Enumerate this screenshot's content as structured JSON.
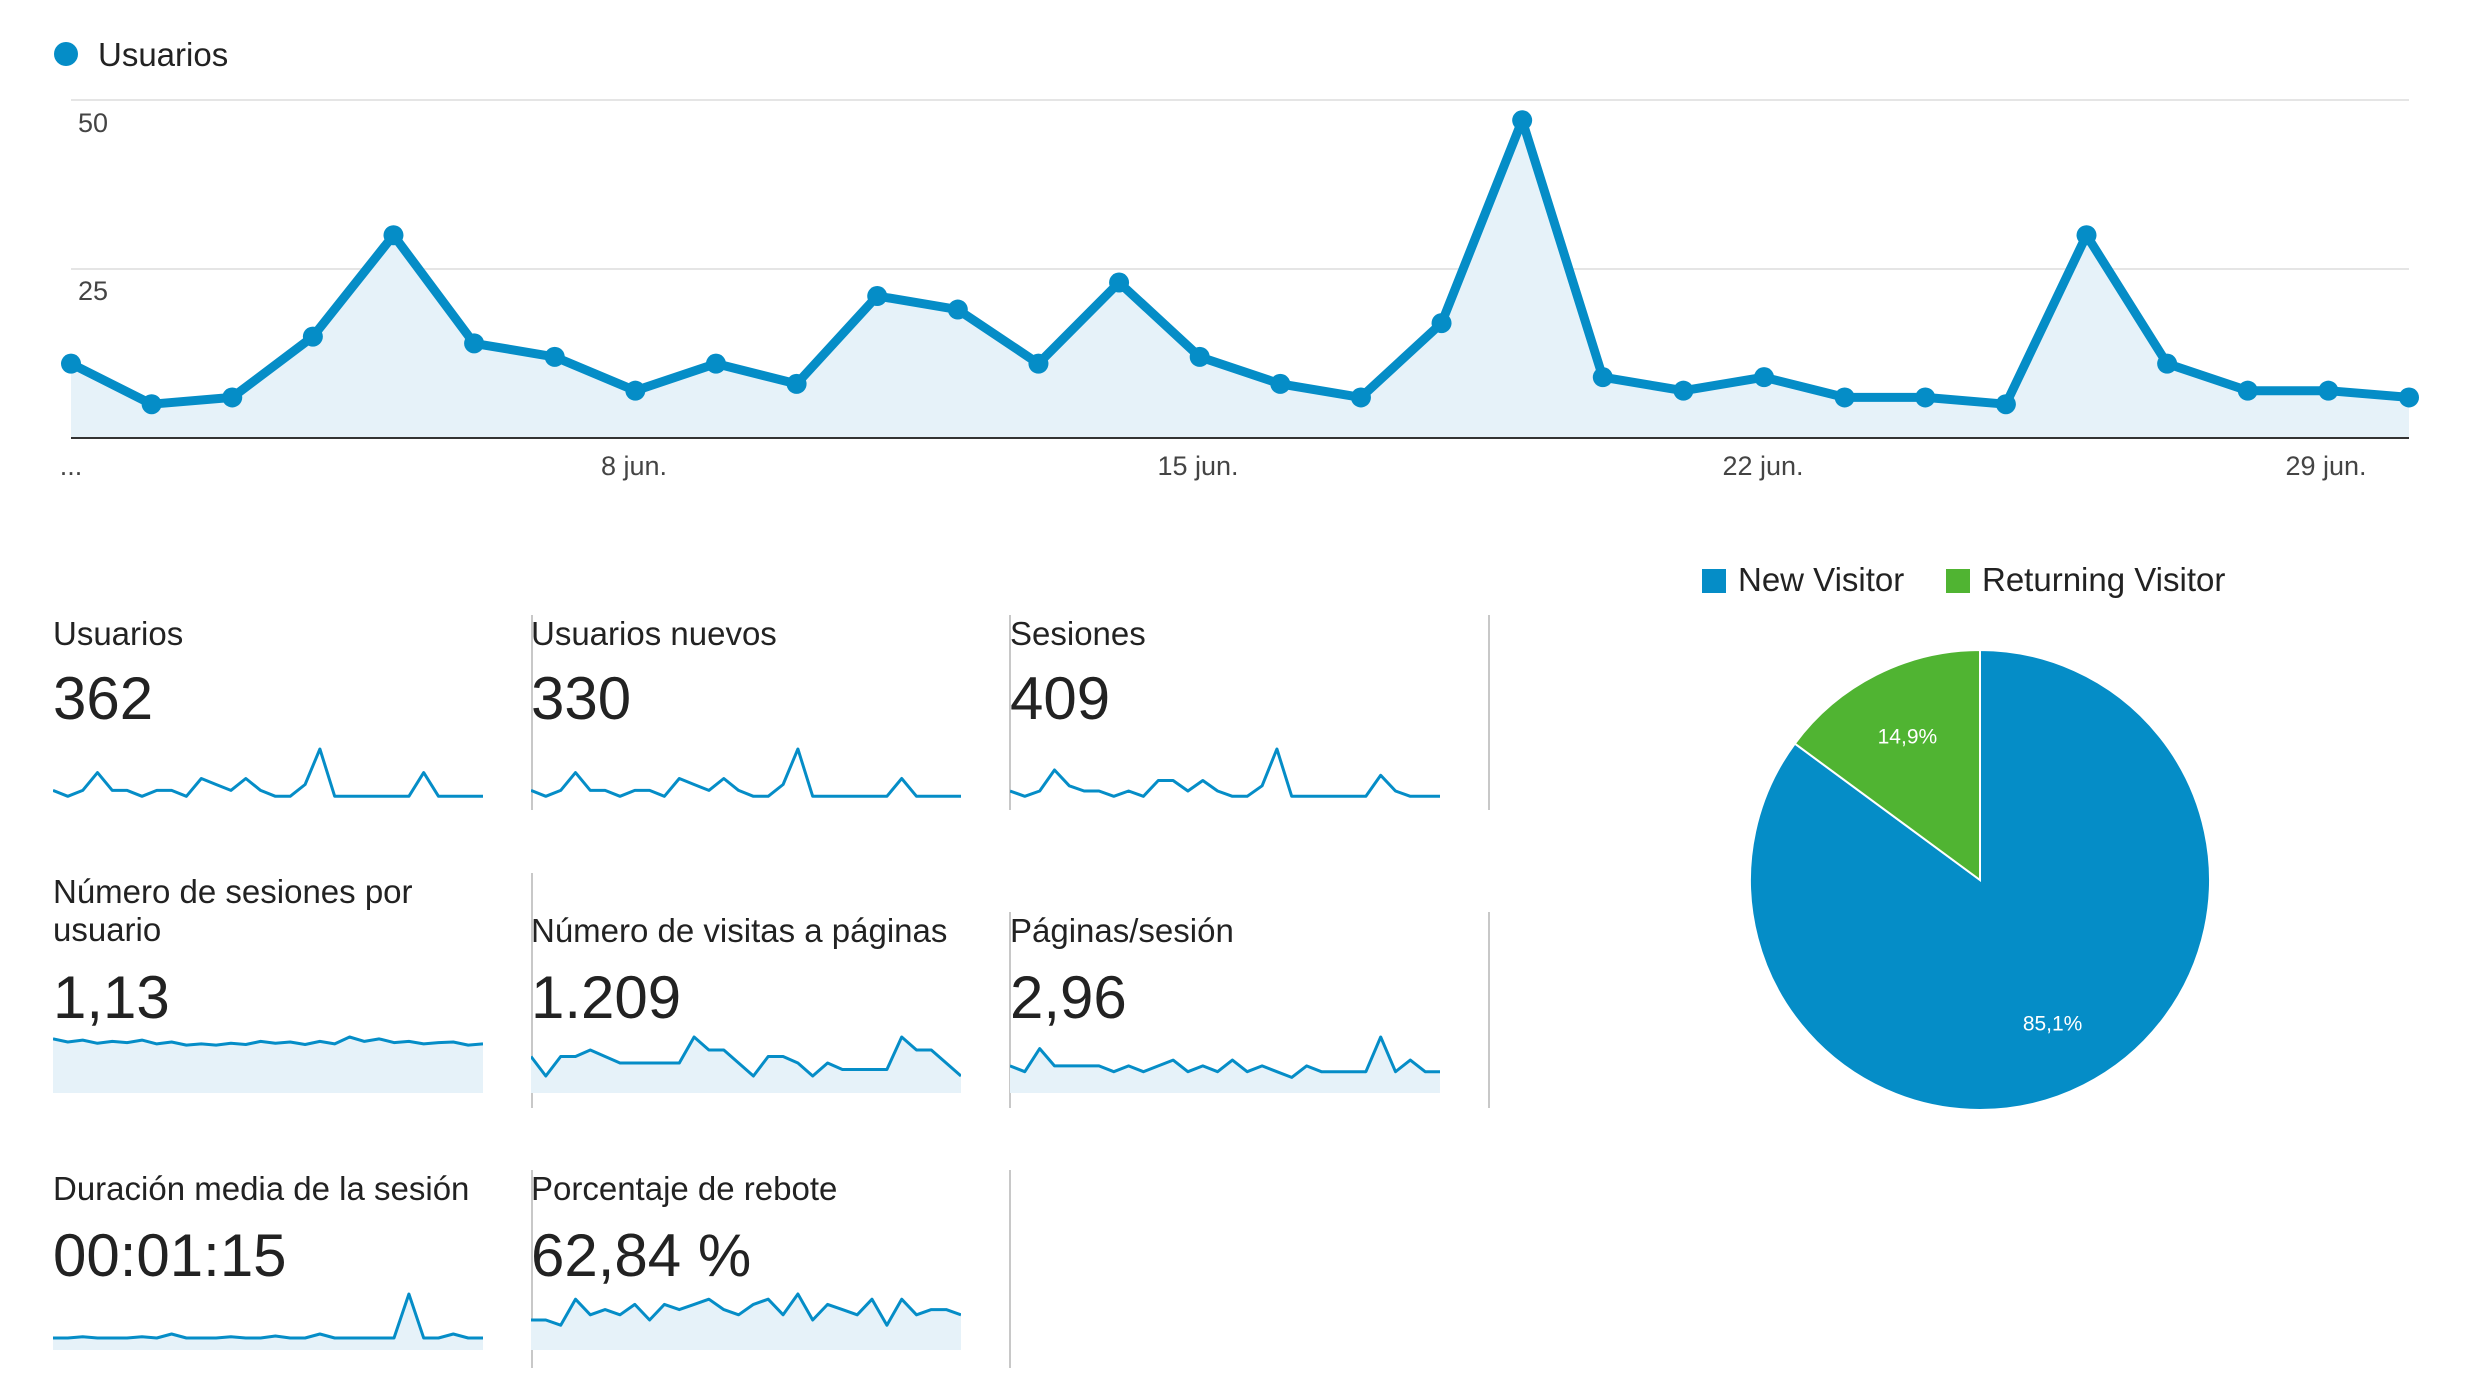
{
  "colors": {
    "series": "#058dc7",
    "series_fill": "#e6f2f9",
    "new_visitor": "#058dc7",
    "returning_visitor": "#50b432",
    "grid": "#e5e5e5",
    "axis": "#333333",
    "tile_divider": "#c8c8c8"
  },
  "chart_data": [
    {
      "type": "line",
      "legend": "Usuarios",
      "legend_placement": "top-left",
      "y_ticks": [
        "50",
        "25"
      ],
      "ylim": [
        0,
        50
      ],
      "x_tick_labels": [
        "...",
        "8 jun.",
        "15 jun.",
        "22 jun.",
        "29 jun."
      ],
      "grid": true,
      "series": [
        {
          "name": "Usuarios",
          "values": [
            11,
            5,
            6,
            15,
            30,
            14,
            12,
            7,
            11,
            8,
            21,
            19,
            11,
            23,
            12,
            8,
            6,
            17,
            47,
            9,
            7,
            9,
            6,
            6,
            5,
            30,
            11,
            7,
            7,
            6
          ]
        }
      ]
    },
    {
      "type": "pie",
      "legend": [
        "New Visitor",
        "Returning Visitor"
      ],
      "legend_placement": "top",
      "slices": [
        {
          "name": "New Visitor",
          "value": 85.1,
          "label": "85,1%"
        },
        {
          "name": "Returning Visitor",
          "value": 14.9,
          "label": "14,9%"
        }
      ]
    }
  ],
  "metrics": [
    {
      "label": "Usuarios",
      "value": "362",
      "spark": [
        5,
        4,
        5,
        8,
        5,
        5,
        4,
        5,
        5,
        4,
        7,
        6,
        5,
        7,
        5,
        4,
        4,
        6,
        12,
        4,
        4,
        4,
        4,
        4,
        4,
        8,
        4,
        4,
        4,
        4
      ],
      "area": false
    },
    {
      "label": "Usuarios nuevos",
      "value": "330",
      "spark": [
        5,
        4,
        5,
        8,
        5,
        5,
        4,
        5,
        5,
        4,
        7,
        6,
        5,
        7,
        5,
        4,
        4,
        6,
        12,
        4,
        4,
        4,
        4,
        4,
        4,
        7,
        4,
        4,
        4,
        4
      ],
      "area": false
    },
    {
      "label": "Sesiones",
      "value": "409",
      "spark": [
        5,
        4,
        5,
        9,
        6,
        5,
        5,
        4,
        5,
        4,
        7,
        7,
        5,
        7,
        5,
        4,
        4,
        6,
        13,
        4,
        4,
        4,
        4,
        4,
        4,
        8,
        5,
        4,
        4,
        4
      ],
      "area": false
    },
    {
      "label": "Número de sesiones por usuario",
      "value": "1,13",
      "spark": [
        8,
        7.5,
        7.8,
        7.3,
        7.6,
        7.4,
        7.8,
        7.2,
        7.5,
        7,
        7.2,
        7,
        7.3,
        7.1,
        7.6,
        7.3,
        7.5,
        7.1,
        7.6,
        7.2,
        8.3,
        7.6,
        8,
        7.4,
        7.6,
        7.2,
        7.4,
        7.5,
        7,
        7.2
      ],
      "area": true
    },
    {
      "label": "Número de visitas a páginas",
      "value": "1.209",
      "spark": [
        5,
        2,
        5,
        5,
        6,
        5,
        4,
        4,
        4,
        4,
        4,
        8,
        6,
        6,
        4,
        2,
        5,
        5,
        4,
        2,
        4,
        3,
        3,
        3,
        3,
        8,
        6,
        6,
        4,
        2
      ],
      "area": true
    },
    {
      "label": "Páginas/sesión",
      "value": "2,96",
      "spark": [
        4,
        3,
        7,
        4,
        4,
        4,
        4,
        3,
        4,
        3,
        4,
        5,
        3,
        4,
        3,
        5,
        3,
        4,
        3,
        2,
        4,
        3,
        3,
        3,
        3,
        9,
        3,
        5,
        3,
        3
      ],
      "area": true
    },
    {
      "label": "Duración media de la sesión",
      "value": "00:01:15",
      "spark": [
        2,
        2,
        2.3,
        2,
        2,
        2,
        2.3,
        2,
        3,
        2,
        2,
        2,
        2.3,
        2,
        2,
        2.5,
        2,
        2,
        3,
        2,
        2,
        2,
        2,
        2,
        13,
        2,
        2,
        3,
        2,
        2
      ],
      "area": true
    },
    {
      "label": "Porcentaje de rebote",
      "value": "62,84 %",
      "spark": [
        5,
        5,
        4,
        9,
        6,
        7,
        6,
        8,
        5,
        8,
        7,
        8,
        9,
        7,
        6,
        8,
        9,
        6,
        10,
        5,
        8,
        7,
        6,
        9,
        4,
        9,
        6,
        7,
        7,
        6
      ],
      "area": true
    }
  ]
}
